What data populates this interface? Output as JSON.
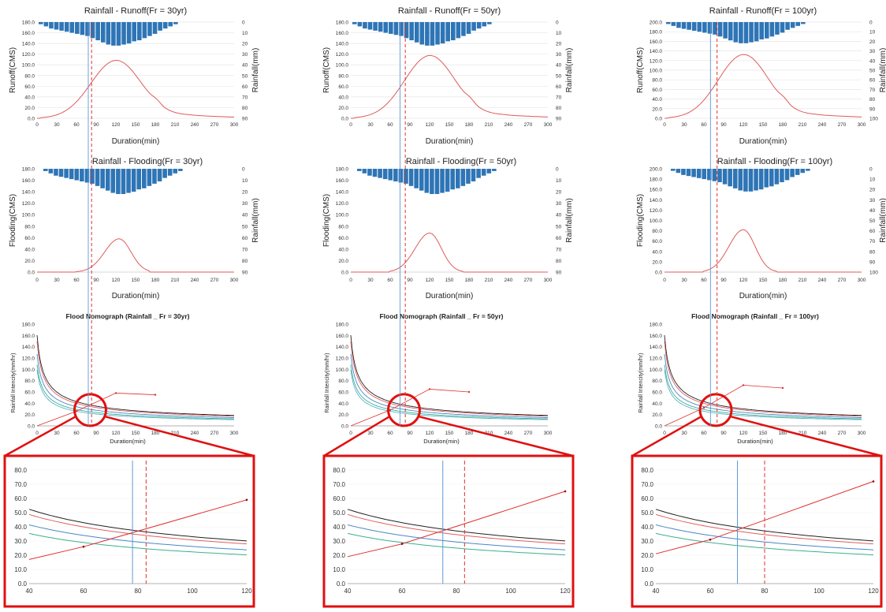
{
  "colors": {
    "rain": "#2e75b6",
    "model": "#e05a5a",
    "blue_line": "#5b9bd5",
    "red_line": "#e03030",
    "frame": "#e01010",
    "black_curve": "#222222",
    "red_curve": "#e06060",
    "blue_curve": "#4a86c8",
    "green_curve": "#3bb08f",
    "teal_curve": "#58b4c8"
  },
  "columns": [
    {
      "runoff_title": "Rainfall - Runoff(Fr = 30yr)",
      "flood_title": "Rainfall - Flooding(Fr = 30yr)",
      "nomo_title": "Flood Nomograph (Rainfall _ Fr = 30yr)",
      "y_max": 180,
      "rain_max": 90,
      "runoff_peak": 108,
      "flood_peak": 58,
      "blue_x": 78,
      "red_x": 83,
      "rain": [
        2,
        4,
        6,
        7,
        8,
        9,
        10,
        11,
        12,
        13,
        15,
        17,
        19,
        21,
        22,
        22,
        21,
        20,
        18,
        17,
        15,
        13,
        11,
        8,
        6,
        4,
        2
      ],
      "nomo_line": [
        [
          0,
          0
        ],
        [
          60,
          26
        ],
        [
          120,
          58
        ],
        [
          180,
          55
        ]
      ],
      "zoom_line": [
        [
          40,
          17
        ],
        [
          60,
          26
        ],
        [
          120,
          59
        ]
      ]
    },
    {
      "runoff_title": "Rainfall - Runoff(Fr = 50yr)",
      "flood_title": "Rainfall - Flooding(Fr = 50yr)",
      "nomo_title": "Flood Nomograph (Rainfall _ Fr = 50yr)",
      "y_max": 180,
      "rain_max": 90,
      "runoff_peak": 117,
      "flood_peak": 68,
      "blue_x": 75,
      "red_x": 83,
      "rain": [
        2,
        4,
        6,
        7,
        8,
        9,
        10,
        11,
        12,
        13,
        15,
        17,
        19,
        21,
        22,
        22,
        21,
        20,
        18,
        17,
        15,
        13,
        11,
        8,
        6,
        4,
        2
      ],
      "nomo_line": [
        [
          0,
          0
        ],
        [
          60,
          28
        ],
        [
          120,
          65
        ],
        [
          180,
          60
        ]
      ],
      "zoom_line": [
        [
          40,
          19
        ],
        [
          60,
          28
        ],
        [
          120,
          65
        ]
      ]
    },
    {
      "runoff_title": "Rainfall - Runoff(Fr = 100yr)",
      "flood_title": "Rainfall - Flooding(Fr = 100yr)",
      "nomo_title": "Flood Nomograph (Rainfall _ Fr = 100yr)",
      "y_max": 200,
      "rain_max": 100,
      "runoff_peak": 132,
      "flood_peak": 82,
      "blue_x": 70,
      "red_x": 80,
      "rain": [
        2,
        4,
        6,
        7,
        8,
        9,
        10,
        11,
        12,
        13,
        15,
        17,
        19,
        21,
        22,
        22,
        21,
        20,
        18,
        17,
        15,
        13,
        11,
        8,
        6,
        4,
        2
      ],
      "nomo_line": [
        [
          0,
          0
        ],
        [
          60,
          32
        ],
        [
          120,
          72
        ],
        [
          180,
          67
        ]
      ],
      "zoom_line": [
        [
          40,
          21
        ],
        [
          60,
          31
        ],
        [
          120,
          72
        ]
      ]
    }
  ],
  "labels": {
    "runoff_y": "Runoff(CMS)",
    "flood_y": "Flooding(CMS)",
    "rain_y": "Rainfall(mm)",
    "duration": "Duration(min)",
    "intensity_y": "Rainfall Intencity(mm/hr)"
  },
  "chart_data": [
    {
      "type": "line",
      "title": "Rainfall - Runoff(Fr = 30yr)",
      "xlabel": "Duration(min)",
      "ylabel": "Runoff(CMS)",
      "y2label": "Rainfall(mm)",
      "xlim": [
        0,
        300
      ],
      "ylim": [
        0,
        180
      ],
      "y2lim": [
        0,
        90
      ],
      "series": [
        {
          "name": "Runoff",
          "peak": [
            120,
            108
          ]
        }
      ]
    },
    {
      "type": "line",
      "title": "Rainfall - Runoff(Fr = 50yr)",
      "xlabel": "Duration(min)",
      "ylabel": "Runoff(CMS)",
      "y2label": "Rainfall(mm)",
      "xlim": [
        0,
        300
      ],
      "ylim": [
        0,
        180
      ],
      "y2lim": [
        0,
        90
      ],
      "series": [
        {
          "name": "Runoff",
          "peak": [
            120,
            117
          ]
        }
      ]
    },
    {
      "type": "line",
      "title": "Rainfall - Runoff(Fr = 100yr)",
      "xlabel": "Duration(min)",
      "ylabel": "Runoff(CMS)",
      "y2label": "Rainfall(mm)",
      "xlim": [
        0,
        300
      ],
      "ylim": [
        0,
        200
      ],
      "y2lim": [
        0,
        100
      ],
      "series": [
        {
          "name": "Runoff",
          "peak": [
            120,
            132
          ]
        }
      ]
    },
    {
      "type": "line",
      "title": "Rainfall - Flooding(Fr = 30yr)",
      "xlabel": "Duration(min)",
      "ylabel": "Flooding(CMS)",
      "xlim": [
        0,
        300
      ],
      "ylim": [
        0,
        180
      ],
      "series": [
        {
          "name": "Flooding",
          "peak": [
            125,
            58
          ]
        }
      ]
    },
    {
      "type": "line",
      "title": "Rainfall - Flooding(Fr = 50yr)",
      "xlabel": "Duration(min)",
      "ylabel": "Flooding(CMS)",
      "xlim": [
        0,
        300
      ],
      "ylim": [
        0,
        180
      ],
      "series": [
        {
          "name": "Flooding",
          "peak": [
            120,
            68
          ]
        }
      ]
    },
    {
      "type": "line",
      "title": "Rainfall - Flooding(Fr = 100yr)",
      "xlabel": "Duration(min)",
      "ylabel": "Flooding(CMS)",
      "xlim": [
        0,
        300
      ],
      "ylim": [
        0,
        200
      ],
      "series": [
        {
          "name": "Flooding",
          "peak": [
            120,
            82
          ]
        }
      ]
    },
    {
      "type": "line",
      "title": "Flood Nomograph (Rainfall _ Fr = 30yr)",
      "xlabel": "Duration(min)",
      "ylabel": "Rainfall Intencity(mm/hr)",
      "xlim": [
        0,
        300
      ],
      "ylim": [
        0,
        180
      ]
    },
    {
      "type": "line",
      "title": "Flood Nomograph (Rainfall _ Fr = 50yr)",
      "xlabel": "Duration(min)",
      "ylabel": "Rainfall Intencity(mm/hr)",
      "xlim": [
        0,
        300
      ],
      "ylim": [
        0,
        180
      ]
    },
    {
      "type": "line",
      "title": "Flood Nomograph (Rainfall _ Fr = 100yr)",
      "xlabel": "Duration(min)",
      "ylabel": "Rainfall Intencity(mm/hr)",
      "xlim": [
        0,
        300
      ],
      "ylim": [
        0,
        180
      ]
    },
    {
      "type": "line",
      "xlim": [
        40,
        120
      ],
      "ylim": [
        0,
        80
      ]
    }
  ]
}
